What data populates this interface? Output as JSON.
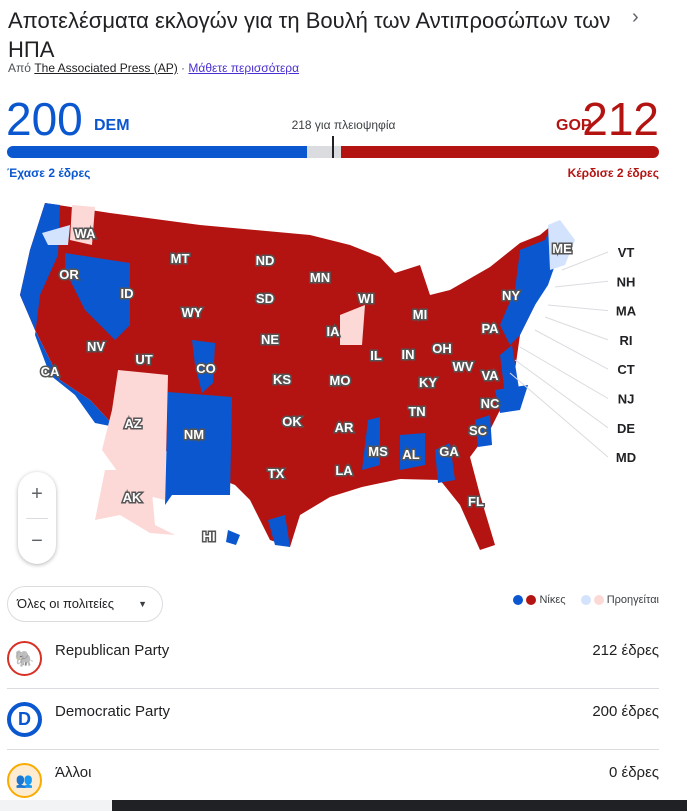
{
  "header": {
    "title": "Αποτελέσματα εκλογών για τη Βουλή των Αντιπροσώπων των ΗΠΑ",
    "source_prefix": "Από",
    "source_link": "The Associated Press (AP)",
    "separator": "·",
    "learn_more": "Μάθετε περισσότερα"
  },
  "tally": {
    "dem_seats": "200",
    "dem_label": "DEM",
    "gop_seats": "212",
    "gop_label": "GOP",
    "majority": "218 για πλειοψηφία",
    "dem_change": "Έχασε 2 έδρες",
    "gop_change": "Κέρδισε 2 έδρες",
    "total_seats": 435,
    "dem_value": 200,
    "gop_value": 212
  },
  "colors": {
    "dem": "#0b57d0",
    "gop": "#b31412",
    "dem_lead": "#d3e3fd",
    "gop_lead": "#fcd9d6"
  },
  "map": {
    "states": [
      "WA",
      "OR",
      "ID",
      "MT",
      "WY",
      "ND",
      "SD",
      "NE",
      "MN",
      "WI",
      "MI",
      "IA",
      "IL",
      "IN",
      "OH",
      "PA",
      "NY",
      "NV",
      "UT",
      "CO",
      "CA",
      "AZ",
      "NM",
      "KS",
      "MO",
      "KY",
      "WV",
      "VA",
      "NC",
      "TN",
      "AR",
      "OK",
      "TX",
      "LA",
      "MS",
      "AL",
      "GA",
      "SC",
      "FL",
      "AK",
      "HI",
      "ME"
    ],
    "callouts": [
      "VT",
      "NH",
      "MA",
      "RI",
      "CT",
      "NJ",
      "DE",
      "MD"
    ],
    "zoom_in": "+",
    "zoom_out": "−"
  },
  "filter": {
    "selected": "Όλες οι πολιτείες"
  },
  "legend": {
    "wins": "Νίκες",
    "leading": "Προηγείται"
  },
  "parties": [
    {
      "name": "Republican Party",
      "seats": "212 έδρες",
      "icon": "elephant-icon"
    },
    {
      "name": "Democratic Party",
      "seats": "200 έδρες",
      "icon": "donkey-d-icon"
    },
    {
      "name": "Άλλοι",
      "seats": "0 έδρες",
      "icon": "people-icon"
    }
  ]
}
